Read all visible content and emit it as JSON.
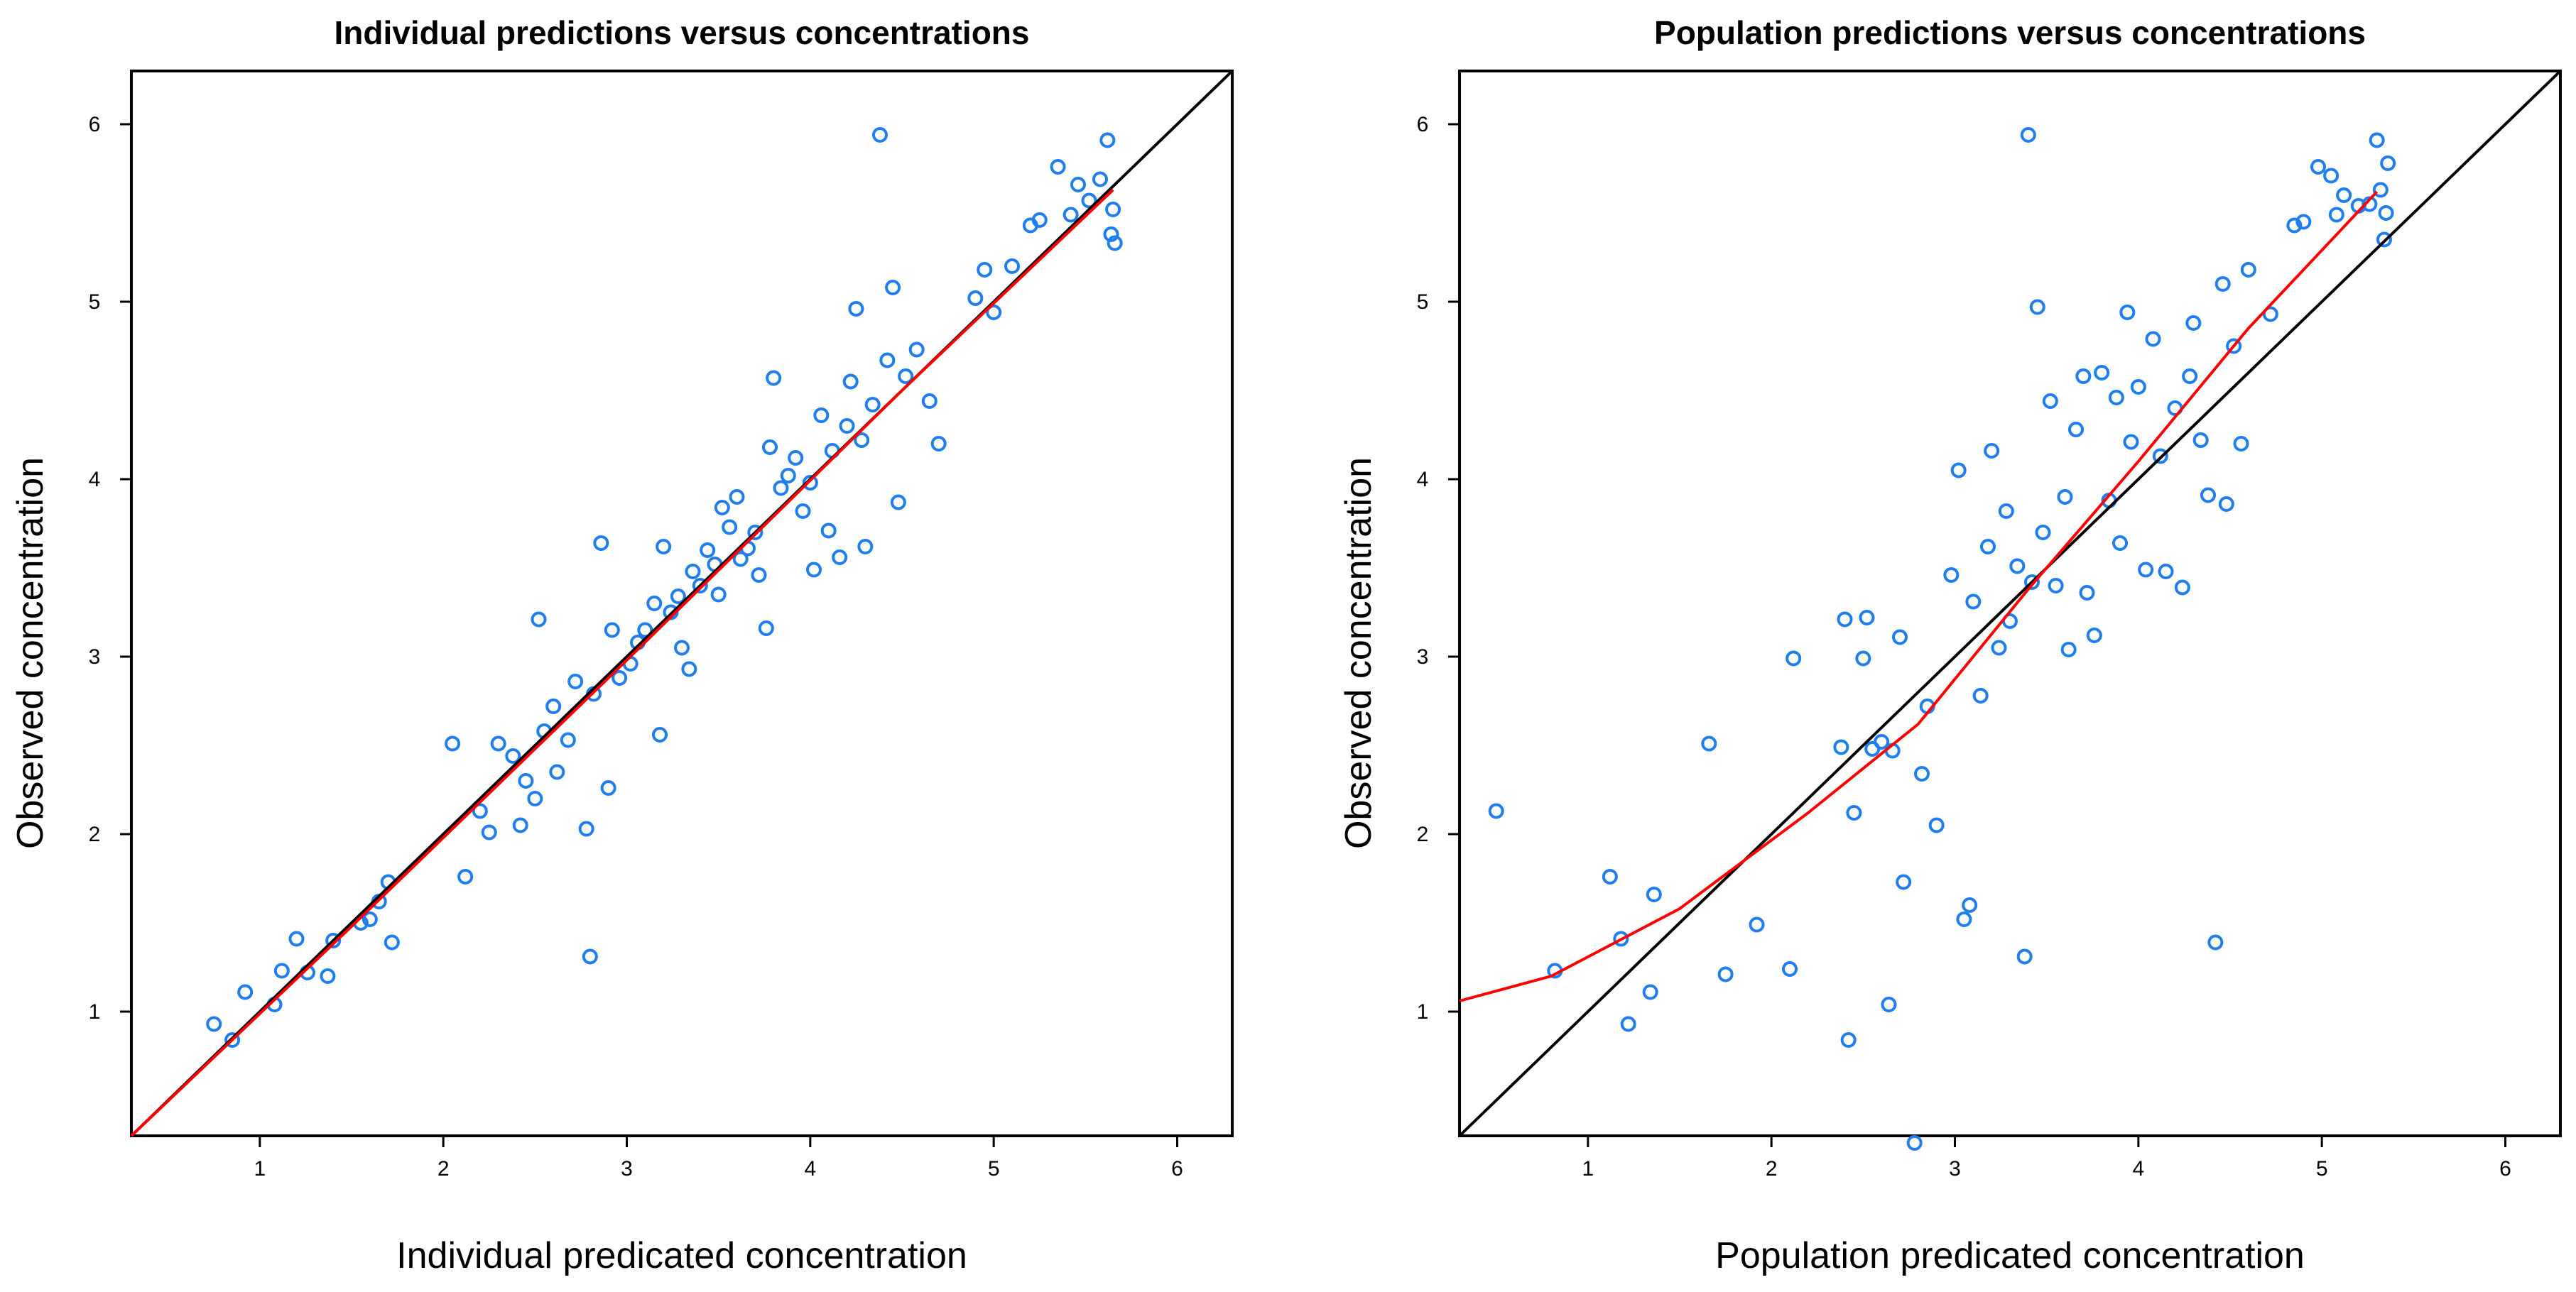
{
  "chart_data": [
    {
      "type": "scatter",
      "title": "Individual predictions versus concentrations",
      "xlabel": "Individual predicated concentration",
      "ylabel": "Observed concentration",
      "xlim": [
        0.3,
        6.3
      ],
      "ylim": [
        0.3,
        6.3
      ],
      "xticks": [
        1,
        2,
        3,
        4,
        5,
        6
      ],
      "yticks": [
        1,
        2,
        3,
        4,
        5,
        6
      ],
      "reference_line": {
        "name": "identity",
        "color": "#000000",
        "points": [
          [
            0.3,
            0.3
          ],
          [
            6.3,
            6.3
          ]
        ]
      },
      "smooth_line": {
        "name": "loess",
        "color": "#ff0000",
        "points": [
          [
            0.3,
            0.3
          ],
          [
            1.5,
            1.48
          ],
          [
            3.0,
            2.98
          ],
          [
            4.5,
            4.5
          ],
          [
            5.65,
            5.63
          ]
        ]
      },
      "point_color": "#1e7ef0",
      "points": [
        [
          0.75,
          0.93
        ],
        [
          0.85,
          0.84
        ],
        [
          0.92,
          1.11
        ],
        [
          1.08,
          1.04
        ],
        [
          1.12,
          1.23
        ],
        [
          1.2,
          1.41
        ],
        [
          1.26,
          1.22
        ],
        [
          1.37,
          1.2
        ],
        [
          1.4,
          1.4
        ],
        [
          1.55,
          1.5
        ],
        [
          1.6,
          1.52
        ],
        [
          1.65,
          1.62
        ],
        [
          1.7,
          1.73
        ],
        [
          1.72,
          1.39
        ],
        [
          2.05,
          2.51
        ],
        [
          2.12,
          1.76
        ],
        [
          2.2,
          2.13
        ],
        [
          2.25,
          2.01
        ],
        [
          2.3,
          2.51
        ],
        [
          2.38,
          2.44
        ],
        [
          2.42,
          2.05
        ],
        [
          2.45,
          2.3
        ],
        [
          2.5,
          2.2
        ],
        [
          2.52,
          3.21
        ],
        [
          2.55,
          2.58
        ],
        [
          2.6,
          2.72
        ],
        [
          2.62,
          2.35
        ],
        [
          2.68,
          2.53
        ],
        [
          2.72,
          2.86
        ],
        [
          2.78,
          2.03
        ],
        [
          2.8,
          1.31
        ],
        [
          2.82,
          2.79
        ],
        [
          2.86,
          3.64
        ],
        [
          2.9,
          2.26
        ],
        [
          2.92,
          3.15
        ],
        [
          2.96,
          2.88
        ],
        [
          3.02,
          2.96
        ],
        [
          3.06,
          3.08
        ],
        [
          3.1,
          3.15
        ],
        [
          3.15,
          3.3
        ],
        [
          3.18,
          2.56
        ],
        [
          3.2,
          3.62
        ],
        [
          3.24,
          3.25
        ],
        [
          3.28,
          3.34
        ],
        [
          3.3,
          3.05
        ],
        [
          3.34,
          2.93
        ],
        [
          3.36,
          3.48
        ],
        [
          3.4,
          3.4
        ],
        [
          3.44,
          3.6
        ],
        [
          3.48,
          3.52
        ],
        [
          3.5,
          3.35
        ],
        [
          3.52,
          3.84
        ],
        [
          3.56,
          3.73
        ],
        [
          3.6,
          3.9
        ],
        [
          3.62,
          3.55
        ],
        [
          3.66,
          3.61
        ],
        [
          3.7,
          3.7
        ],
        [
          3.72,
          3.46
        ],
        [
          3.76,
          3.16
        ],
        [
          3.78,
          4.18
        ],
        [
          3.8,
          4.57
        ],
        [
          3.84,
          3.95
        ],
        [
          3.88,
          4.02
        ],
        [
          3.92,
          4.12
        ],
        [
          3.96,
          3.82
        ],
        [
          4.0,
          3.98
        ],
        [
          4.02,
          3.49
        ],
        [
          4.06,
          4.36
        ],
        [
          4.1,
          3.71
        ],
        [
          4.12,
          4.16
        ],
        [
          4.16,
          3.56
        ],
        [
          4.2,
          4.3
        ],
        [
          4.22,
          4.55
        ],
        [
          4.25,
          4.96
        ],
        [
          4.28,
          4.22
        ],
        [
          4.3,
          3.62
        ],
        [
          4.34,
          4.42
        ],
        [
          4.38,
          5.94
        ],
        [
          4.42,
          4.67
        ],
        [
          4.45,
          5.08
        ],
        [
          4.48,
          3.87
        ],
        [
          4.52,
          4.58
        ],
        [
          4.58,
          4.73
        ],
        [
          4.65,
          4.44
        ],
        [
          4.7,
          4.2
        ],
        [
          4.9,
          5.02
        ],
        [
          4.95,
          5.18
        ],
        [
          5.0,
          4.94
        ],
        [
          5.1,
          5.2
        ],
        [
          5.2,
          5.43
        ],
        [
          5.25,
          5.46
        ],
        [
          5.35,
          5.76
        ],
        [
          5.42,
          5.49
        ],
        [
          5.46,
          5.66
        ],
        [
          5.52,
          5.57
        ],
        [
          5.58,
          5.69
        ],
        [
          5.62,
          5.91
        ],
        [
          5.64,
          5.38
        ],
        [
          5.65,
          5.52
        ],
        [
          5.66,
          5.33
        ]
      ]
    },
    {
      "type": "scatter",
      "title": "Population predictions versus concentrations",
      "xlabel": "Population predicated concentration",
      "ylabel": "Observed concentration",
      "xlim": [
        0.3,
        6.3
      ],
      "ylim": [
        0.3,
        6.3
      ],
      "xticks": [
        1,
        2,
        3,
        4,
        5,
        6
      ],
      "yticks": [
        1,
        2,
        3,
        4,
        5,
        6
      ],
      "reference_line": {
        "name": "identity",
        "color": "#000000",
        "points": [
          [
            0.3,
            0.3
          ],
          [
            6.3,
            6.3
          ]
        ]
      },
      "smooth_line": {
        "name": "loess",
        "color": "#ff0000",
        "points": [
          [
            0.3,
            1.06
          ],
          [
            0.8,
            1.2
          ],
          [
            1.5,
            1.58
          ],
          [
            2.2,
            2.12
          ],
          [
            2.8,
            2.62
          ],
          [
            3.4,
            3.38
          ],
          [
            4.0,
            4.1
          ],
          [
            4.6,
            4.85
          ],
          [
            5.3,
            5.62
          ]
        ]
      },
      "point_color": "#1e7ef0",
      "points": [
        [
          0.5,
          2.13
        ],
        [
          0.82,
          1.23
        ],
        [
          1.12,
          1.76
        ],
        [
          1.18,
          1.41
        ],
        [
          1.22,
          0.93
        ],
        [
          1.34,
          1.11
        ],
        [
          1.36,
          1.66
        ],
        [
          1.66,
          2.51
        ],
        [
          1.75,
          1.21
        ],
        [
          1.92,
          1.49
        ],
        [
          2.1,
          1.24
        ],
        [
          2.12,
          2.99
        ],
        [
          2.38,
          2.49
        ],
        [
          2.4,
          3.21
        ],
        [
          2.42,
          0.84
        ],
        [
          2.45,
          2.12
        ],
        [
          2.5,
          2.99
        ],
        [
          2.52,
          3.22
        ],
        [
          2.55,
          2.48
        ],
        [
          2.6,
          2.52
        ],
        [
          2.64,
          1.04
        ],
        [
          2.66,
          2.47
        ],
        [
          2.7,
          3.11
        ],
        [
          2.72,
          1.73
        ],
        [
          2.78,
          0.26
        ],
        [
          2.82,
          2.34
        ],
        [
          2.85,
          2.72
        ],
        [
          2.9,
          2.05
        ],
        [
          2.98,
          3.46
        ],
        [
          3.02,
          4.05
        ],
        [
          3.05,
          1.52
        ],
        [
          3.08,
          1.6
        ],
        [
          3.1,
          3.31
        ],
        [
          3.14,
          2.78
        ],
        [
          3.18,
          3.62
        ],
        [
          3.2,
          4.16
        ],
        [
          3.24,
          3.05
        ],
        [
          3.28,
          3.82
        ],
        [
          3.3,
          3.2
        ],
        [
          3.34,
          3.51
        ],
        [
          3.38,
          1.31
        ],
        [
          3.4,
          5.94
        ],
        [
          3.42,
          3.42
        ],
        [
          3.45,
          4.97
        ],
        [
          3.48,
          3.7
        ],
        [
          3.52,
          4.44
        ],
        [
          3.55,
          3.4
        ],
        [
          3.6,
          3.9
        ],
        [
          3.62,
          3.04
        ],
        [
          3.66,
          4.28
        ],
        [
          3.7,
          4.58
        ],
        [
          3.72,
          3.36
        ],
        [
          3.76,
          3.12
        ],
        [
          3.8,
          4.6
        ],
        [
          3.84,
          3.88
        ],
        [
          3.88,
          4.46
        ],
        [
          3.9,
          3.64
        ],
        [
          3.94,
          4.94
        ],
        [
          3.96,
          4.21
        ],
        [
          4.0,
          4.52
        ],
        [
          4.04,
          3.49
        ],
        [
          4.08,
          4.79
        ],
        [
          4.12,
          4.13
        ],
        [
          4.15,
          3.48
        ],
        [
          4.2,
          4.4
        ],
        [
          4.24,
          3.39
        ],
        [
          4.28,
          4.58
        ],
        [
          4.3,
          4.88
        ],
        [
          4.34,
          4.22
        ],
        [
          4.38,
          3.91
        ],
        [
          4.42,
          1.39
        ],
        [
          4.46,
          5.1
        ],
        [
          4.48,
          3.86
        ],
        [
          4.52,
          4.75
        ],
        [
          4.56,
          4.2
        ],
        [
          4.6,
          5.18
        ],
        [
          4.72,
          4.93
        ],
        [
          4.85,
          5.43
        ],
        [
          4.9,
          5.45
        ],
        [
          4.98,
          5.76
        ],
        [
          5.05,
          5.71
        ],
        [
          5.08,
          5.49
        ],
        [
          5.12,
          5.6
        ],
        [
          5.2,
          5.54
        ],
        [
          5.26,
          5.55
        ],
        [
          5.3,
          5.91
        ],
        [
          5.32,
          5.63
        ],
        [
          5.34,
          5.35
        ],
        [
          5.35,
          5.5
        ],
        [
          5.36,
          5.78
        ]
      ]
    }
  ]
}
